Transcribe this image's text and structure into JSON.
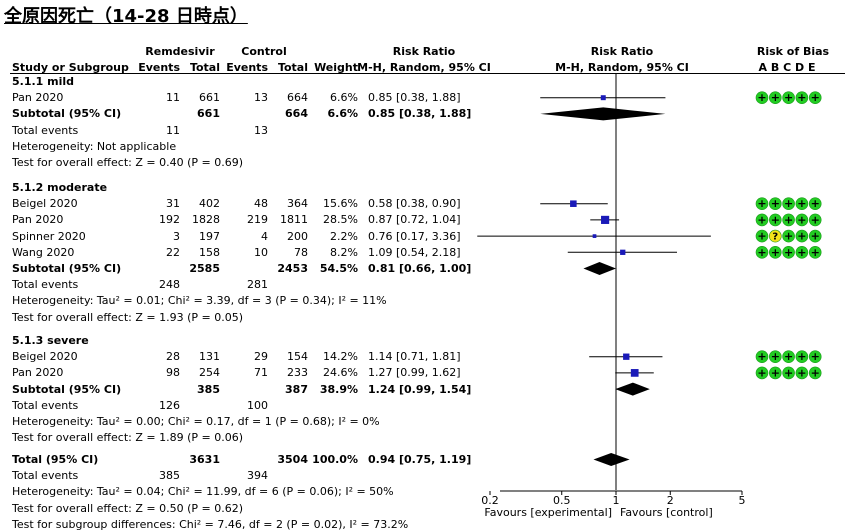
{
  "title": "全原因死亡（14-28 日時点）",
  "headers": {
    "group1": "Remdesivir",
    "group2": "Control",
    "study": "Study or Subgroup",
    "events1": "Events",
    "total1": "Total",
    "events2": "Events",
    "total2": "Total",
    "weight": "Weight",
    "rr": "Risk Ratio",
    "rr_method": "M-H, Random, 95% CI",
    "rr_plot": "Risk Ratio",
    "rr_plot_method": "M-H, Random, 95% CI",
    "rob": "Risk of Bias",
    "rob_letters": "A B C D E"
  },
  "subgroups": [
    {
      "name": "5.1.1 mild",
      "studies": [
        {
          "study": "Pan 2020",
          "e1": "11",
          "t1": "661",
          "e2": "13",
          "t2": "664",
          "weight": "6.6%",
          "ci": "0.85 [0.38, 1.88]",
          "rr": 0.85,
          "lo": 0.38,
          "hi": 1.88,
          "w": 6.6,
          "rob": [
            "+",
            "+",
            "+",
            "+",
            "+"
          ]
        }
      ],
      "subtotal": {
        "label": "Subtotal (95% CI)",
        "t1": "661",
        "t2": "664",
        "weight": "6.6%",
        "ci": "0.85 [0.38, 1.88]",
        "rr": 0.85,
        "lo": 0.38,
        "hi": 1.88
      },
      "total_events": {
        "label": "Total events",
        "e1": "11",
        "e2": "13"
      },
      "heterogeneity": "Heterogeneity: Not applicable",
      "overall": "Test for overall effect: Z = 0.40 (P = 0.69)"
    },
    {
      "name": "5.1.2 moderate",
      "studies": [
        {
          "study": "Beigel 2020",
          "e1": "31",
          "t1": "402",
          "e2": "48",
          "t2": "364",
          "weight": "15.6%",
          "ci": "0.58 [0.38, 0.90]",
          "rr": 0.58,
          "lo": 0.38,
          "hi": 0.9,
          "w": 15.6,
          "rob": [
            "+",
            "+",
            "+",
            "+",
            "+"
          ]
        },
        {
          "study": "Pan 2020",
          "e1": "192",
          "t1": "1828",
          "e2": "219",
          "t2": "1811",
          "weight": "28.5%",
          "ci": "0.87 [0.72, 1.04]",
          "rr": 0.87,
          "lo": 0.72,
          "hi": 1.04,
          "w": 28.5,
          "rob": [
            "+",
            "+",
            "+",
            "+",
            "+"
          ]
        },
        {
          "study": "Spinner 2020",
          "e1": "3",
          "t1": "197",
          "e2": "4",
          "t2": "200",
          "weight": "2.2%",
          "ci": "0.76 [0.17, 3.36]",
          "rr": 0.76,
          "lo": 0.17,
          "hi": 3.36,
          "w": 2.2,
          "rob": [
            "+",
            "?",
            "+",
            "+",
            "+"
          ]
        },
        {
          "study": "Wang 2020",
          "e1": "22",
          "t1": "158",
          "e2": "10",
          "t2": "78",
          "weight": "8.2%",
          "ci": "1.09 [0.54, 2.18]",
          "rr": 1.09,
          "lo": 0.54,
          "hi": 2.18,
          "w": 8.2,
          "rob": [
            "+",
            "+",
            "+",
            "+",
            "+"
          ]
        }
      ],
      "subtotal": {
        "label": "Subtotal (95% CI)",
        "t1": "2585",
        "t2": "2453",
        "weight": "54.5%",
        "ci": "0.81 [0.66, 1.00]",
        "rr": 0.81,
        "lo": 0.66,
        "hi": 1.0
      },
      "total_events": {
        "label": "Total events",
        "e1": "248",
        "e2": "281"
      },
      "heterogeneity": "Heterogeneity: Tau² = 0.01; Chi² = 3.39, df = 3 (P = 0.34); I² = 11%",
      "overall": "Test for overall effect: Z = 1.93 (P = 0.05)"
    },
    {
      "name": "5.1.3 severe",
      "studies": [
        {
          "study": "Beigel 2020",
          "e1": "28",
          "t1": "131",
          "e2": "29",
          "t2": "154",
          "weight": "14.2%",
          "ci": "1.14 [0.71, 1.81]",
          "rr": 1.14,
          "lo": 0.71,
          "hi": 1.81,
          "w": 14.2,
          "rob": [
            "+",
            "+",
            "+",
            "+",
            "+"
          ]
        },
        {
          "study": "Pan 2020",
          "e1": "98",
          "t1": "254",
          "e2": "71",
          "t2": "233",
          "weight": "24.6%",
          "ci": "1.27 [0.99, 1.62]",
          "rr": 1.27,
          "lo": 0.99,
          "hi": 1.62,
          "w": 24.6,
          "rob": [
            "+",
            "+",
            "+",
            "+",
            "+"
          ]
        }
      ],
      "subtotal": {
        "label": "Subtotal (95% CI)",
        "t1": "385",
        "t2": "387",
        "weight": "38.9%",
        "ci": "1.24 [0.99, 1.54]",
        "rr": 1.24,
        "lo": 0.99,
        "hi": 1.54
      },
      "total_events": {
        "label": "Total events",
        "e1": "126",
        "e2": "100"
      },
      "heterogeneity": "Heterogeneity: Tau² = 0.00; Chi² = 0.17, df = 1 (P = 0.68); I² = 0%",
      "overall": "Test for overall effect: Z = 1.89 (P = 0.06)"
    }
  ],
  "total": {
    "label": "Total (95% CI)",
    "t1": "3631",
    "t2": "3504",
    "weight": "100.0%",
    "ci": "0.94 [0.75, 1.19]",
    "rr": 0.94,
    "lo": 0.75,
    "hi": 1.19
  },
  "total_events": {
    "label": "Total events",
    "e1": "385",
    "e2": "394"
  },
  "footer": {
    "heterogeneity": "Heterogeneity: Tau² = 0.04; Chi² = 11.99, df = 6 (P = 0.06); I² = 50%",
    "overall": "Test for overall effect: Z = 0.50 (P = 0.62)",
    "subgroup": "Test for subgroup differences: Chi² = 7.46, df = 2 (P = 0.02), I² = 73.2%"
  },
  "colors": {
    "study_marker": "#1a1ab8",
    "rob_low": "#22cc22",
    "rob_unclear": "#f2e21a",
    "text": "#000000"
  },
  "chart_data": {
    "type": "forest",
    "title": "全原因死亡（14-28 日時点）",
    "x_scale": "log",
    "xlim": [
      0.2,
      5
    ],
    "x_ticks": [
      "0.2",
      "0.5",
      "1",
      "2",
      "5"
    ],
    "x_tick_values": [
      0.2,
      0.5,
      1,
      2,
      5
    ],
    "favours_left": "Favours [experimental]",
    "favours_right": "Favours [control]",
    "null_line": 1
  }
}
